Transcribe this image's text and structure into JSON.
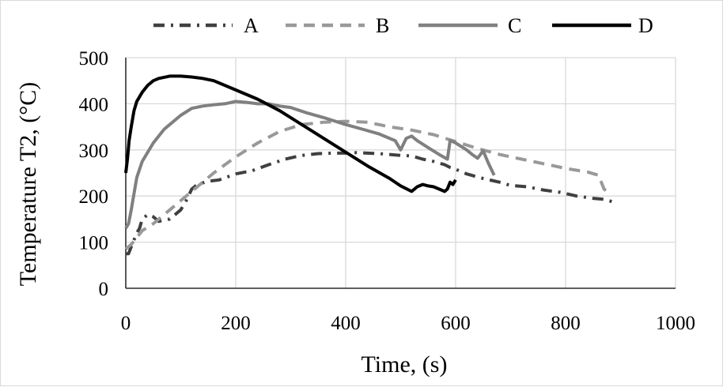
{
  "chart_data": {
    "type": "line",
    "title": "",
    "xlabel": "Time, (s)",
    "ylabel": "Temperature T2, (°C)",
    "xlim": [
      0,
      1000
    ],
    "ylim": [
      0,
      500
    ],
    "xticks": [
      "0",
      "200",
      "400",
      "600",
      "800",
      "1000"
    ],
    "yticks": [
      "0",
      "100",
      "200",
      "300",
      "400",
      "500"
    ],
    "grid": true,
    "legend_position": "top",
    "series": [
      {
        "name": "A",
        "color": "#404040",
        "dash": "dash-dot",
        "x": [
          0,
          5,
          10,
          15,
          20,
          25,
          30,
          40,
          50,
          60,
          70,
          80,
          90,
          100,
          110,
          120,
          130,
          150,
          170,
          200,
          230,
          260,
          290,
          320,
          350,
          380,
          400,
          420,
          440,
          460,
          480,
          500,
          520,
          540,
          560,
          580,
          590,
          595,
          600,
          620,
          650,
          680,
          700,
          730,
          760,
          790,
          820,
          850,
          870,
          890
        ],
        "y": [
          75,
          75,
          90,
          105,
          120,
          130,
          150,
          160,
          155,
          145,
          148,
          150,
          160,
          170,
          190,
          215,
          225,
          232,
          235,
          248,
          255,
          268,
          280,
          288,
          292,
          293,
          293,
          294,
          293,
          292,
          290,
          288,
          287,
          280,
          275,
          268,
          262,
          260,
          258,
          248,
          238,
          230,
          223,
          220,
          213,
          208,
          200,
          195,
          193,
          186
        ]
      },
      {
        "name": "B",
        "color": "#999999",
        "dash": "dash",
        "x": [
          0,
          10,
          20,
          30,
          50,
          70,
          100,
          130,
          160,
          200,
          240,
          280,
          320,
          360,
          400,
          440,
          480,
          520,
          560,
          600,
          640,
          680,
          720,
          760,
          800,
          840,
          860,
          870,
          880
        ],
        "y": [
          85,
          95,
          110,
          125,
          140,
          160,
          190,
          220,
          250,
          285,
          315,
          340,
          355,
          360,
          362,
          360,
          350,
          343,
          333,
          318,
          303,
          290,
          280,
          270,
          260,
          252,
          245,
          215,
          205
        ]
      },
      {
        "name": "C",
        "color": "#808080",
        "dash": "solid",
        "x": [
          0,
          5,
          10,
          20,
          30,
          40,
          50,
          60,
          70,
          80,
          100,
          120,
          140,
          160,
          180,
          200,
          220,
          240,
          260,
          280,
          300,
          330,
          360,
          400,
          430,
          460,
          490,
          500,
          510,
          520,
          530,
          550,
          570,
          585,
          590,
          595,
          600,
          620,
          630,
          640,
          650,
          660,
          670
        ],
        "y": [
          130,
          140,
          170,
          240,
          275,
          295,
          315,
          330,
          345,
          355,
          375,
          390,
          395,
          398,
          400,
          405,
          403,
          400,
          400,
          395,
          392,
          380,
          370,
          355,
          345,
          335,
          320,
          300,
          325,
          330,
          320,
          305,
          290,
          280,
          320,
          318,
          315,
          300,
          290,
          282,
          298,
          270,
          245
        ]
      },
      {
        "name": "D",
        "color": "#000000",
        "dash": "solid",
        "x": [
          0,
          3,
          6,
          10,
          15,
          20,
          30,
          40,
          50,
          60,
          80,
          100,
          120,
          140,
          160,
          200,
          240,
          280,
          320,
          360,
          400,
          440,
          480,
          500,
          520,
          530,
          540,
          550,
          560,
          570,
          580,
          585,
          590,
          595,
          600
        ],
        "y": [
          250,
          280,
          320,
          350,
          385,
          405,
          425,
          440,
          450,
          455,
          460,
          460,
          458,
          455,
          450,
          430,
          410,
          385,
          355,
          325,
          295,
          265,
          238,
          222,
          210,
          220,
          225,
          222,
          220,
          215,
          210,
          215,
          230,
          225,
          235
        ]
      }
    ]
  }
}
